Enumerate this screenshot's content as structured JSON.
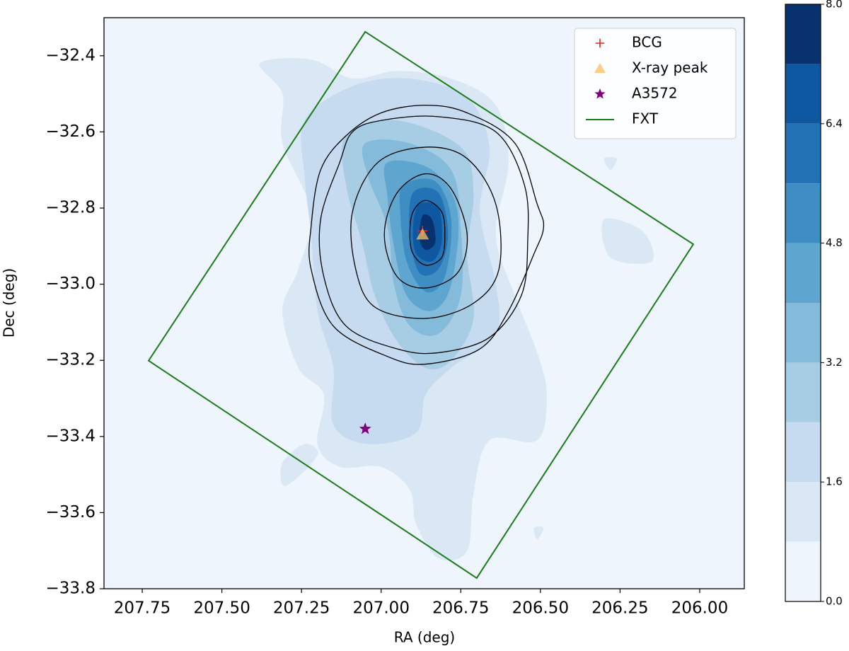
{
  "chart_data": {
    "type": "contour",
    "xlabel": "RA (deg)",
    "ylabel": "Dec (deg)",
    "xlim": [
      207.87,
      205.86
    ],
    "ylim": [
      -33.8,
      -32.3
    ],
    "xticks": [
      207.75,
      {
        "value": 207.5,
        "label": "207.50"
      },
      207.25,
      {
        "value": 207,
        "label": "207.00"
      },
      206.75,
      {
        "value": 206.5,
        "label": "206.50"
      },
      206.25,
      {
        "value": 206,
        "label": "206.00"
      }
    ],
    "yticks": [
      {
        "value": -32.4,
        "label": "−32.4"
      },
      {
        "value": -32.6,
        "label": "−32.6"
      },
      {
        "value": -32.8,
        "label": "−32.8"
      },
      {
        "value": -33.0,
        "label": "−33.0"
      },
      {
        "value": -33.2,
        "label": "−33.2"
      },
      {
        "value": -33.4,
        "label": "−33.4"
      },
      {
        "value": -33.6,
        "label": "−33.6"
      },
      {
        "value": -33.8,
        "label": "−33.8"
      }
    ],
    "colorbar": {
      "levels": [
        0,
        0.8,
        1.6,
        2.4,
        3.2,
        4.0,
        4.8,
        5.6,
        6.4,
        7.2,
        8.0
      ],
      "colors": [
        "#eef5fc",
        "#dae8f5",
        "#c6dbef",
        "#a6cde3",
        "#84bbdb",
        "#5ea5d0",
        "#3e8ec4",
        "#2272b5",
        "#0e58a1",
        "#08326e"
      ],
      "ticks": [
        {
          "value": 0,
          "label": "0.0"
        },
        1.6,
        3.2,
        4.8,
        6.4,
        {
          "value": 8,
          "label": "8.0"
        }
      ]
    },
    "filled": [
      {
        "level": 0.8,
        "regions": [
          {
            "ra": [
              207.38,
              207.22,
              207.09,
              206.95,
              206.78,
              206.64,
              206.6,
              206.64,
              206.58,
              206.51,
              206.48,
              206.51,
              206.66,
              206.71,
              206.73,
              206.82,
              206.89,
              206.91,
              207.0,
              207.13,
              207.2,
              207.18,
              207.26,
              207.31,
              207.26,
              207.22,
              207.31,
              207.31
            ],
            "dec": [
              -32.42,
              -32.41,
              -32.46,
              -32.44,
              -32.46,
              -32.53,
              -32.68,
              -32.87,
              -33.03,
              -33.18,
              -33.29,
              -33.41,
              -33.41,
              -33.55,
              -33.7,
              -33.72,
              -33.63,
              -33.54,
              -33.48,
              -33.48,
              -33.42,
              -33.29,
              -33.22,
              -33.07,
              -32.96,
              -32.81,
              -32.63,
              -32.5
            ]
          },
          {
            "ra": [
              206.3,
              206.26,
              206.28
            ],
            "dec": [
              -32.67,
              -32.67,
              -32.7
            ]
          },
          {
            "ra": [
              206.52,
              206.49,
              206.51
            ],
            "dec": [
              -33.64,
              -33.64,
              -33.67
            ]
          },
          {
            "ra": [
              206.3,
              206.18,
              206.15,
              206.28
            ],
            "dec": [
              -32.83,
              -32.86,
              -32.94,
              -32.93
            ]
          },
          {
            "ra": [
              207.24,
              207.2,
              207.3,
              207.31
            ],
            "dec": [
              -33.42,
              -33.45,
              -33.53,
              -33.47
            ]
          }
        ]
      },
      {
        "level": 1.6,
        "regions": [
          {
            "ra": [
              207.24,
              207.09,
              206.91,
              206.73,
              206.66,
              206.69,
              206.64,
              206.64,
              206.78,
              206.86,
              206.89,
              207.04,
              207.15,
              207.15,
              207.2,
              207.22,
              207.24
            ],
            "dec": [
              -32.57,
              -32.48,
              -32.46,
              -32.51,
              -32.64,
              -32.81,
              -33.0,
              -33.13,
              -33.22,
              -33.29,
              -33.39,
              -33.42,
              -33.37,
              -33.22,
              -33.07,
              -32.87,
              -32.72
            ]
          }
        ]
      },
      {
        "level": 2.4,
        "regions": [
          {
            "ra": [
              207.11,
              206.95,
              206.75,
              206.71,
              206.73,
              206.71,
              206.78,
              206.86,
              206.95,
              207.02,
              207.06,
              207.11
            ],
            "dec": [
              -32.61,
              -32.57,
              -32.64,
              -32.76,
              -32.92,
              -33.09,
              -33.2,
              -33.22,
              -33.15,
              -33.03,
              -32.89,
              -32.74
            ]
          }
        ]
      },
      {
        "level": 3.2,
        "regions": [
          {
            "ra": [
              207.05,
              206.91,
              206.78,
              206.75,
              206.75,
              206.82,
              206.91,
              206.96,
              206.98,
              207.04
            ],
            "dec": [
              -32.63,
              -32.63,
              -32.7,
              -32.85,
              -33.03,
              -33.13,
              -33.11,
              -33.0,
              -32.85,
              -32.72
            ]
          }
        ]
      },
      {
        "level": 4.0,
        "regions": [
          {
            "ra": [
              206.98,
              206.84,
              206.76,
              206.78,
              206.84,
              206.92,
              206.96,
              206.98
            ],
            "dec": [
              -32.68,
              -32.7,
              -32.81,
              -33.0,
              -33.07,
              -33.03,
              -32.9,
              -32.77
            ]
          }
        ]
      },
      {
        "level": 4.8,
        "regions": [
          {
            "ra": [
              206.93,
              206.83,
              206.78,
              206.8,
              206.86,
              206.92,
              206.94
            ],
            "dec": [
              -32.74,
              -32.73,
              -32.83,
              -32.98,
              -33.02,
              -32.94,
              -32.81
            ]
          }
        ]
      },
      {
        "level": 5.6,
        "regions": [
          {
            "ra": [
              206.9,
              206.82,
              206.79,
              206.82,
              206.88,
              206.91
            ],
            "dec": [
              -32.76,
              -32.76,
              -32.87,
              -32.96,
              -32.97,
              -32.87
            ]
          }
        ]
      },
      {
        "level": 6.4,
        "regions": [
          {
            "ra": [
              206.88,
              206.82,
              206.81,
              206.84,
              206.89,
              206.9
            ],
            "dec": [
              -32.79,
              -32.8,
              -32.89,
              -32.94,
              -32.92,
              -32.85
            ]
          }
        ]
      },
      {
        "level": 7.2,
        "regions": [
          {
            "ra": [
              206.87,
              206.84,
              206.83,
              206.86,
              206.88
            ],
            "dec": [
              -32.82,
              -32.83,
              -32.89,
              -32.91,
              -32.88
            ]
          }
        ]
      }
    ],
    "contour_color": "#000000",
    "contour_lines": [
      {
        "ra": [
          206.86,
          206.81,
          206.8,
          206.81,
          206.86,
          206.9,
          206.91,
          206.9
        ],
        "dec": [
          -32.78,
          -32.81,
          -32.87,
          -32.93,
          -32.95,
          -32.92,
          -32.87,
          -32.81
        ]
      },
      {
        "ra": [
          206.86,
          206.78,
          206.73,
          206.76,
          206.86,
          206.95,
          206.99,
          206.95
        ],
        "dec": [
          -32.71,
          -32.75,
          -32.87,
          -32.97,
          -33.01,
          -32.98,
          -32.87,
          -32.76
        ]
      },
      {
        "ra": [
          206.86,
          206.73,
          206.64,
          206.63,
          206.71,
          206.86,
          207.02,
          207.08,
          207.09,
          207.01
        ],
        "dec": [
          -32.64,
          -32.67,
          -32.79,
          -32.96,
          -33.05,
          -33.09,
          -33.06,
          -32.96,
          -32.81,
          -32.68
        ]
      },
      {
        "ra": [
          207.0,
          206.82,
          206.64,
          206.55,
          206.54,
          206.56,
          206.66,
          206.82,
          206.95,
          207.11,
          207.18,
          207.19,
          207.13,
          207.09
        ],
        "dec": [
          -32.57,
          -32.56,
          -32.6,
          -32.74,
          -32.89,
          -33.03,
          -33.14,
          -33.18,
          -33.17,
          -33.11,
          -32.98,
          -32.83,
          -32.68,
          -32.6
        ]
      },
      {
        "ra": [
          207.11,
          207.0,
          206.86,
          206.73,
          206.58,
          206.51,
          206.49,
          206.52,
          206.6,
          206.69,
          206.86,
          206.98,
          207.15,
          207.22,
          207.22,
          207.19
        ],
        "dec": [
          -32.61,
          -32.55,
          -32.53,
          -32.55,
          -32.63,
          -32.79,
          -32.85,
          -32.92,
          -33.07,
          -33.17,
          -33.21,
          -33.19,
          -33.11,
          -32.96,
          -32.85,
          -32.7
        ]
      }
    ],
    "series": [
      {
        "name": "BCG",
        "marker": "plus",
        "color": "#e8231e",
        "x": [
          206.87
        ],
        "y": [
          -32.86
        ]
      },
      {
        "name": "X-ray peak",
        "marker": "triangle",
        "color": "#fcc060",
        "x": [
          206.87
        ],
        "y": [
          -32.87
        ]
      },
      {
        "name": "A3572",
        "marker": "star",
        "color": "#800080",
        "x": [
          207.05
        ],
        "y": [
          -33.38
        ]
      },
      {
        "name": "FXT",
        "marker": "line",
        "color": "#1a7d1a",
        "x": [
          207.05,
          206.02,
          206.7,
          207.73
        ],
        "y": [
          -32.337,
          -32.895,
          -33.772,
          -33.201
        ]
      }
    ],
    "legend": "upper right"
  }
}
